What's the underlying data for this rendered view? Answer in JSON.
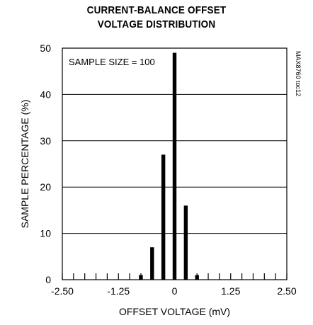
{
  "chart_data": {
    "type": "bar",
    "title": [
      "CURRENT-BALANCE OFFSET",
      "VOLTAGE DISTRIBUTION"
    ],
    "xlabel": "OFFSET VOLTAGE (mV)",
    "ylabel": "SAMPLE PERCENTAGE (%)",
    "annotation": "SAMPLE SIZE = 100",
    "figure_id": "MAX8760 toc12",
    "xlim": [
      -2.5,
      2.5
    ],
    "ylim": [
      0,
      50
    ],
    "x_ticks": [
      "-2.50",
      "-1.25",
      "0",
      "1.25",
      "2.50"
    ],
    "x_tick_values": [
      -2.5,
      -1.25,
      0,
      1.25,
      2.5
    ],
    "y_ticks": [
      "0",
      "10",
      "20",
      "30",
      "40",
      "50"
    ],
    "y_tick_values": [
      0,
      10,
      20,
      30,
      40,
      50
    ],
    "minor_x_step": 0.25,
    "grid": "horizontal",
    "bars": [
      {
        "x": -0.75,
        "value": 1
      },
      {
        "x": -0.5,
        "value": 7
      },
      {
        "x": -0.25,
        "value": 27
      },
      {
        "x": 0,
        "value": 49
      },
      {
        "x": 0.25,
        "value": 16
      },
      {
        "x": 0.5,
        "value": 1
      }
    ],
    "bar_color": "#000000"
  }
}
